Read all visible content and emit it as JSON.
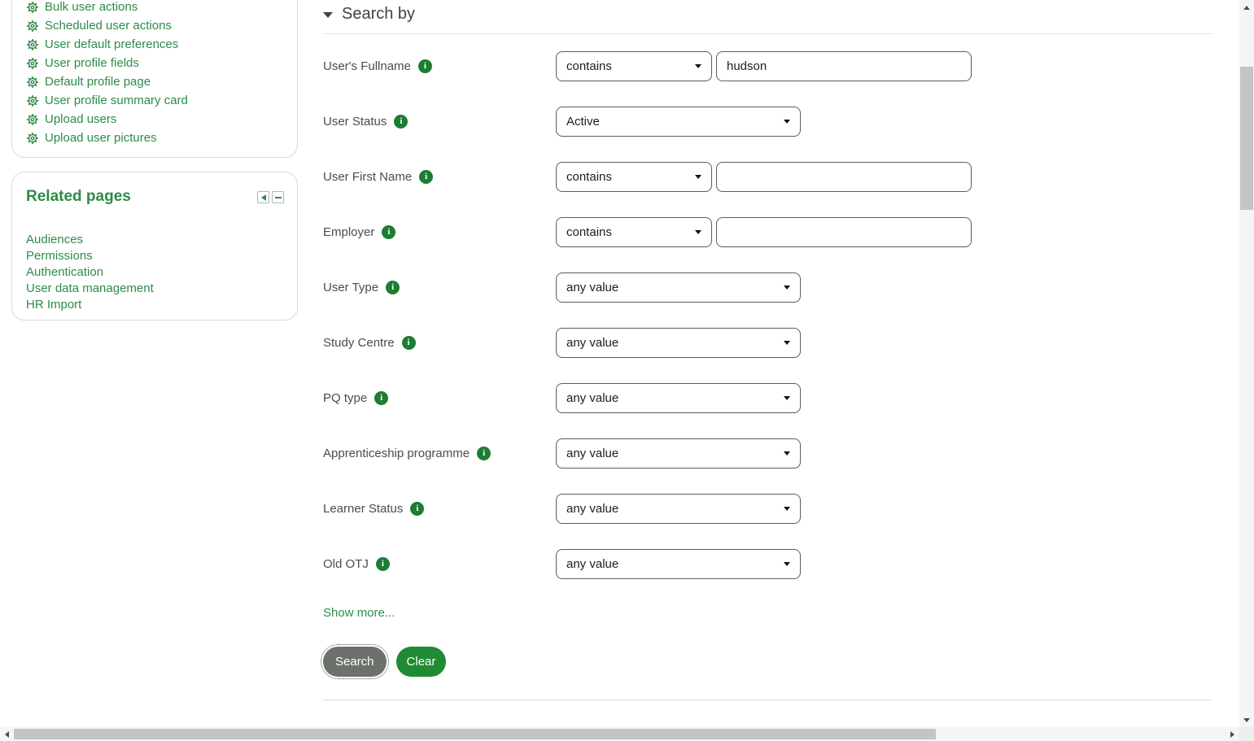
{
  "sidebar": {
    "settings_links": [
      "Bulk user actions",
      "Scheduled user actions",
      "User default preferences",
      "User profile fields",
      "Default profile page",
      "User profile summary card",
      "Upload users",
      "Upload user pictures"
    ],
    "related_pages": {
      "title": "Related pages",
      "links": [
        "Audiences",
        "Permissions",
        "Authentication",
        "User data management",
        "HR Import"
      ]
    }
  },
  "main": {
    "section_title": "Search by",
    "fields": [
      {
        "label": "User's Fullname",
        "control": "operator_text",
        "operator": "contains",
        "value": "hudson"
      },
      {
        "label": "User Status",
        "control": "select",
        "value": "Active"
      },
      {
        "label": "User First Name",
        "control": "operator_text",
        "operator": "contains",
        "value": ""
      },
      {
        "label": "Employer",
        "control": "operator_text",
        "operator": "contains",
        "value": ""
      },
      {
        "label": "User Type",
        "control": "select",
        "value": "any value"
      },
      {
        "label": "Study Centre",
        "control": "select",
        "value": "any value"
      },
      {
        "label": "PQ type",
        "control": "select",
        "value": "any value"
      },
      {
        "label": "Apprenticeship programme",
        "control": "select",
        "value": "any value"
      },
      {
        "label": "Learner Status",
        "control": "select",
        "value": "any value"
      },
      {
        "label": "Old OTJ",
        "control": "select",
        "value": "any value"
      }
    ],
    "show_more_label": "Show more...",
    "search_label": "Search",
    "clear_label": "Clear"
  },
  "colors": {
    "link_green": "#2e8b47",
    "info_green": "#1c7d33",
    "clear_button_green": "#1f8b34",
    "search_button_gray": "#6c716c",
    "header_text": "#3a434b",
    "label_text": "#4c4c4c",
    "card_border": "#d9d9d9",
    "control_border": "#5c5c5c",
    "scrollbar_thumb": "#c4c4c4"
  }
}
